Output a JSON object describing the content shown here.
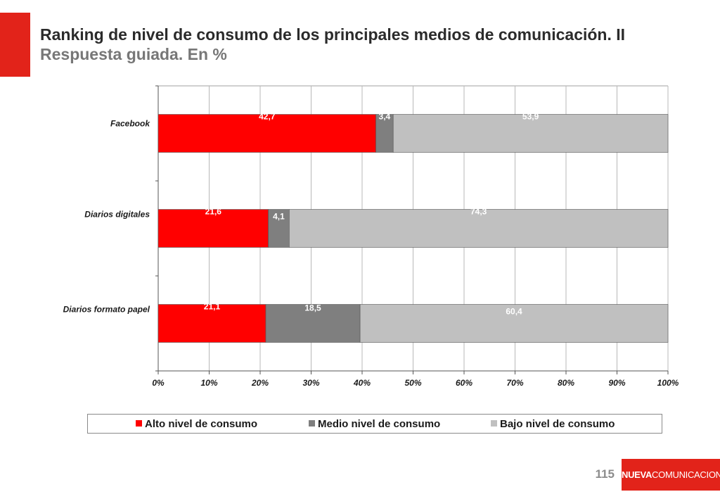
{
  "slide": {
    "title": "Ranking de nivel de consumo de los principales medios de comunicación. II",
    "subtitle": "Respuesta guiada. En %",
    "page_number": "115",
    "brand_bold": "NUEVA",
    "brand_rest": "COMUNICACION",
    "accent_color": "#e2231a"
  },
  "chart_data": {
    "type": "bar",
    "orientation": "horizontal",
    "stacked": "percent",
    "categories": [
      "Facebook",
      "Diarios digitales",
      "Diarios formato papel"
    ],
    "series": [
      {
        "name": "Alto nivel de consumo",
        "color": "#ff0000",
        "values": [
          42.7,
          21.6,
          21.1
        ],
        "labels": [
          "42,7",
          "21,6",
          "21,1"
        ]
      },
      {
        "name": "Medio nivel de consumo",
        "color": "#7f7f7f",
        "values": [
          3.4,
          4.1,
          18.5
        ],
        "labels": [
          "3,4",
          "4,1",
          "18,5"
        ]
      },
      {
        "name": "Bajo nivel de consumo",
        "color": "#c0c0c0",
        "values": [
          53.9,
          74.3,
          60.4
        ],
        "labels": [
          "53,9",
          "74,3",
          "60,4"
        ]
      }
    ],
    "x_ticks": [
      "0%",
      "10%",
      "20%",
      "30%",
      "40%",
      "50%",
      "60%",
      "70%",
      "80%",
      "90%",
      "100%"
    ],
    "xlim": [
      0,
      100
    ],
    "grid": true,
    "legend": "bottom"
  }
}
